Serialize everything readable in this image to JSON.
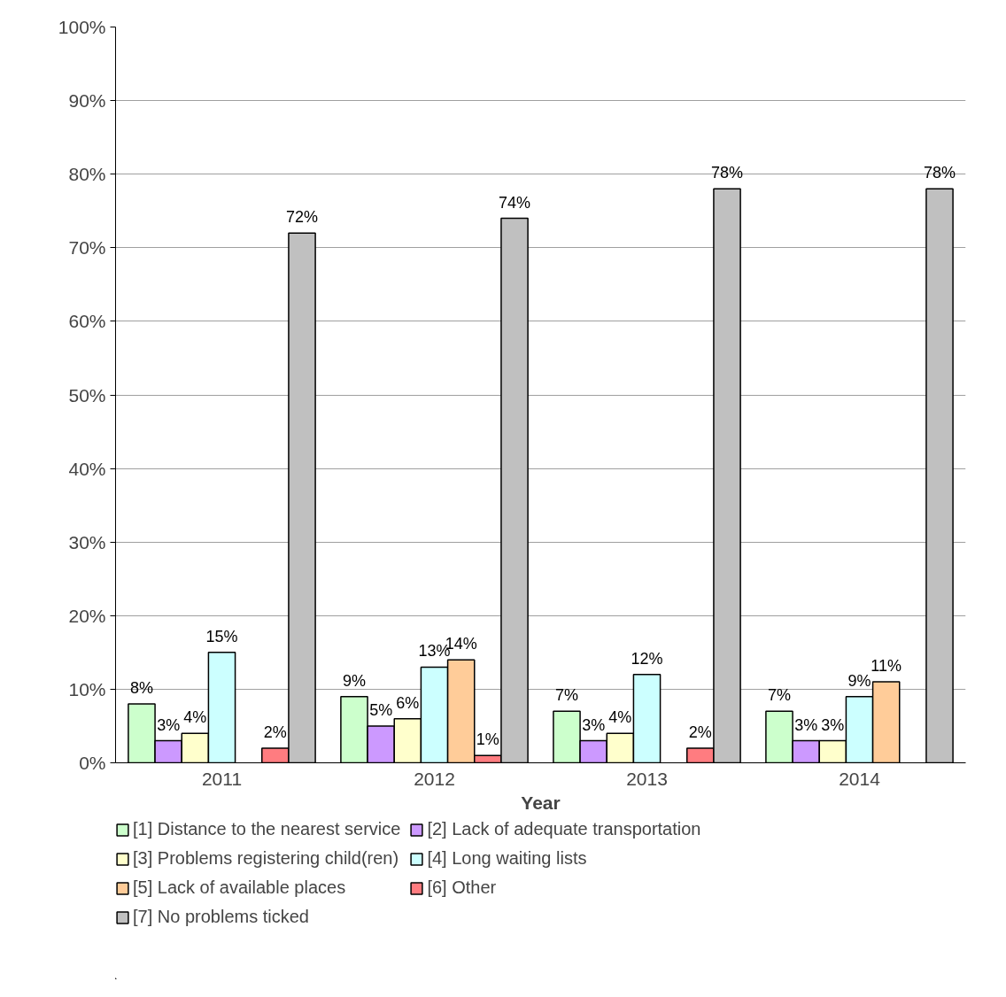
{
  "chart_data": {
    "type": "bar",
    "xlabel": "Year",
    "categories": [
      "2011",
      "2012",
      "2013",
      "2014"
    ],
    "series": [
      {
        "name": "[1] Distance to the nearest service",
        "color": "#ccffcc",
        "values": [
          8,
          9,
          7,
          7
        ],
        "value_labels": [
          "8%",
          "9%",
          "7%",
          "7%"
        ]
      },
      {
        "name": "[2] Lack of adequate transportation",
        "color": "#cc99ff",
        "values": [
          3,
          5,
          3,
          3
        ],
        "value_labels": [
          "3%",
          "5%",
          "3%",
          "3%"
        ]
      },
      {
        "name": "[3] Problems registering child(ren)",
        "color": "#ffffcc",
        "values": [
          4,
          6,
          4,
          3
        ],
        "value_labels": [
          "4%",
          "6%",
          "4%",
          "3%"
        ]
      },
      {
        "name": "[4] Long waiting lists",
        "color": "#ccffff",
        "values": [
          15,
          13,
          12,
          9
        ],
        "value_labels": [
          "15%",
          "13%",
          "12%",
          "9%"
        ]
      },
      {
        "name": "[5] Lack of available places",
        "color": "#ffcc99",
        "values": [
          null,
          14,
          null,
          11
        ],
        "value_labels": [
          null,
          "14%",
          null,
          "11%"
        ]
      },
      {
        "name": "[6] Other",
        "color": "#ff7c80",
        "values": [
          2,
          1,
          2,
          null
        ],
        "value_labels": [
          "2%",
          "1%",
          "2%",
          null
        ]
      },
      {
        "name": "[7] No problems ticked",
        "color": "#c0c0c0",
        "values": [
          72,
          74,
          78,
          78
        ],
        "value_labels": [
          "72%",
          "74%",
          "78%",
          "78%"
        ]
      }
    ],
    "ylim": [
      0,
      100
    ],
    "yticks": [
      {
        "value": 0,
        "label": "0%"
      },
      {
        "value": 10,
        "label": "10%"
      },
      {
        "value": 20,
        "label": "20%"
      },
      {
        "value": 30,
        "label": "30%"
      },
      {
        "value": 40,
        "label": "40%"
      },
      {
        "value": 50,
        "label": "50%"
      },
      {
        "value": 60,
        "label": "60%"
      },
      {
        "value": 70,
        "label": "70%"
      },
      {
        "value": 80,
        "label": "80%"
      },
      {
        "value": 90,
        "label": "90%"
      },
      {
        "value": 100,
        "label": "100%"
      }
    ],
    "grid": "y",
    "legend": "bottom"
  }
}
